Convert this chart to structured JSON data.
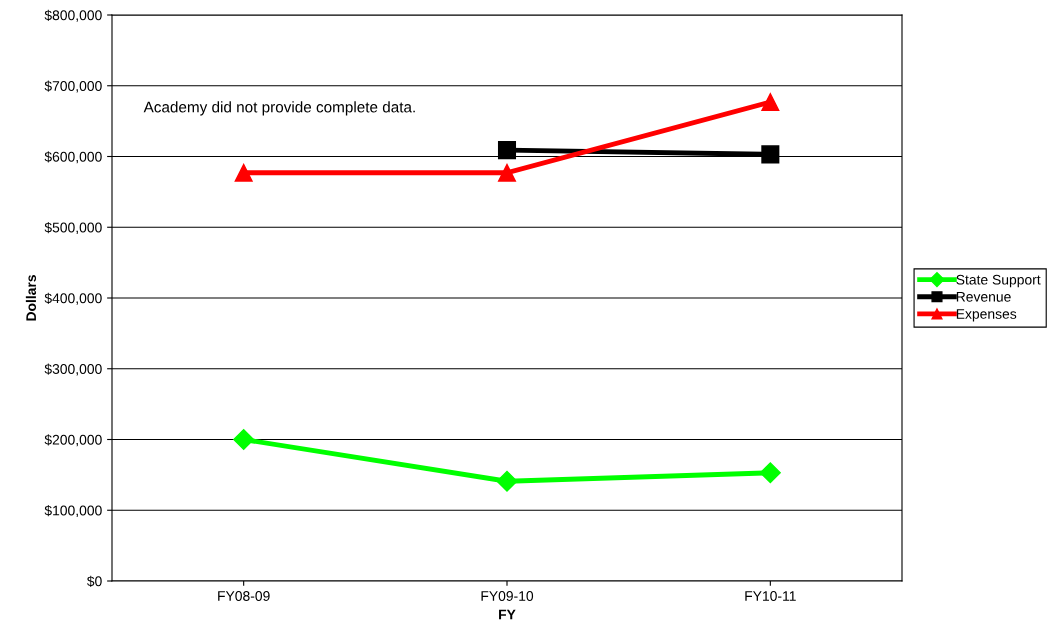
{
  "chart_data": {
    "type": "line",
    "xlabel": "FY",
    "ylabel": "Dollars",
    "categories": [
      "FY08-09",
      "FY09-10",
      "FY10-11"
    ],
    "series": [
      {
        "name": "State Support",
        "color": "#00ff00",
        "marker": "diamond",
        "values": [
          200000,
          141000,
          153000
        ]
      },
      {
        "name": "Revenue",
        "color": "#000000",
        "marker": "square",
        "values": [
          null,
          609000,
          603000
        ]
      },
      {
        "name": "Expenses",
        "color": "#ff0000",
        "marker": "triangle",
        "values": [
          577000,
          577000,
          677000
        ]
      }
    ],
    "ylim": [
      0,
      800000
    ],
    "yticks": [
      {
        "value": 0,
        "label": "$0"
      },
      {
        "value": 100000,
        "label": "$100,000"
      },
      {
        "value": 200000,
        "label": "$200,000"
      },
      {
        "value": 300000,
        "label": "$300,000"
      },
      {
        "value": 400000,
        "label": "$400,000"
      },
      {
        "value": 500000,
        "label": "$500,000"
      },
      {
        "value": 600000,
        "label": "$600,000"
      },
      {
        "value": 700000,
        "label": "$700,000"
      },
      {
        "value": 800000,
        "label": "$800,000"
      }
    ],
    "grid": "y",
    "legend": "right",
    "line_style": "solid",
    "annotations": [
      "Academy did not provide complete data."
    ]
  }
}
